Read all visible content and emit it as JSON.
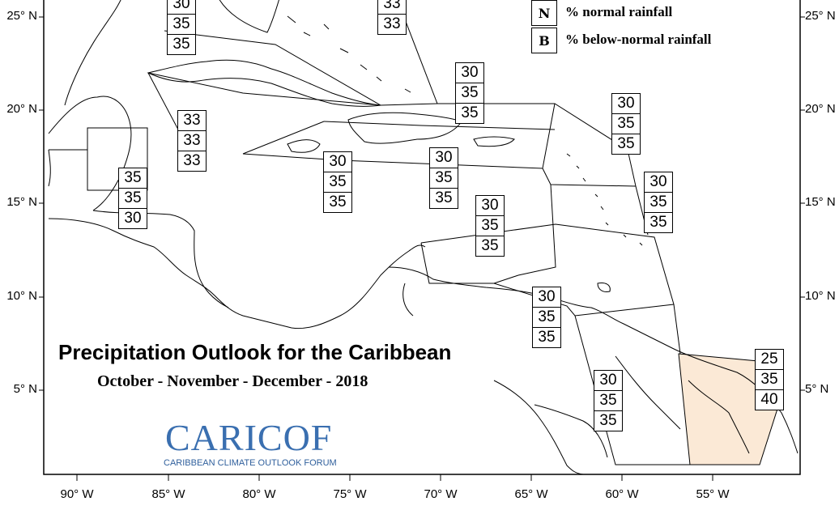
{
  "map": {
    "title": "Precipitation Outlook for the Caribbean",
    "subtitle": "October - November - December - 2018",
    "lat_labels": [
      "25° N",
      "20° N",
      "15° N",
      "10° N",
      "5° N"
    ],
    "lon_labels": [
      "90° W",
      "85° W",
      "80° W",
      "75° W",
      "70° W",
      "65° W",
      "60° W",
      "55° W"
    ],
    "highlight_color": "#fbe9d6"
  },
  "legend": {
    "items": [
      {
        "key": "N",
        "label": "% normal rainfall"
      },
      {
        "key": "B",
        "label": "% below-normal rainfall"
      }
    ]
  },
  "logo": {
    "name": "CARICOF",
    "tagline": "CARIBBEAN CLIMATE OUTLOOK FORUM",
    "color": "#3a6fb0"
  },
  "boxes": [
    {
      "region": "bahamas-west",
      "values": [
        "30",
        "35",
        "35"
      ]
    },
    {
      "region": "bahamas-east",
      "values": [
        "33",
        "33"
      ]
    },
    {
      "region": "cuba-west",
      "values": [
        "33",
        "33",
        "33"
      ]
    },
    {
      "region": "belize",
      "values": [
        "35",
        "35",
        "30"
      ]
    },
    {
      "region": "jamaica",
      "values": [
        "30",
        "35",
        "35"
      ]
    },
    {
      "region": "hispaniola-south",
      "values": [
        "30",
        "35",
        "35"
      ]
    },
    {
      "region": "hispaniola-north",
      "values": [
        "30",
        "35",
        "35"
      ]
    },
    {
      "region": "leeward-north",
      "values": [
        "30",
        "35",
        "35"
      ]
    },
    {
      "region": "leeward-south",
      "values": [
        "30",
        "35",
        "35"
      ]
    },
    {
      "region": "caribbean-south",
      "values": [
        "30",
        "35",
        "35"
      ]
    },
    {
      "region": "trinidad",
      "values": [
        "30",
        "35",
        "35"
      ]
    },
    {
      "region": "guyana",
      "values": [
        "30",
        "35",
        "35"
      ]
    },
    {
      "region": "suriname-french-guiana",
      "values": [
        "25",
        "35",
        "40"
      ]
    }
  ]
}
